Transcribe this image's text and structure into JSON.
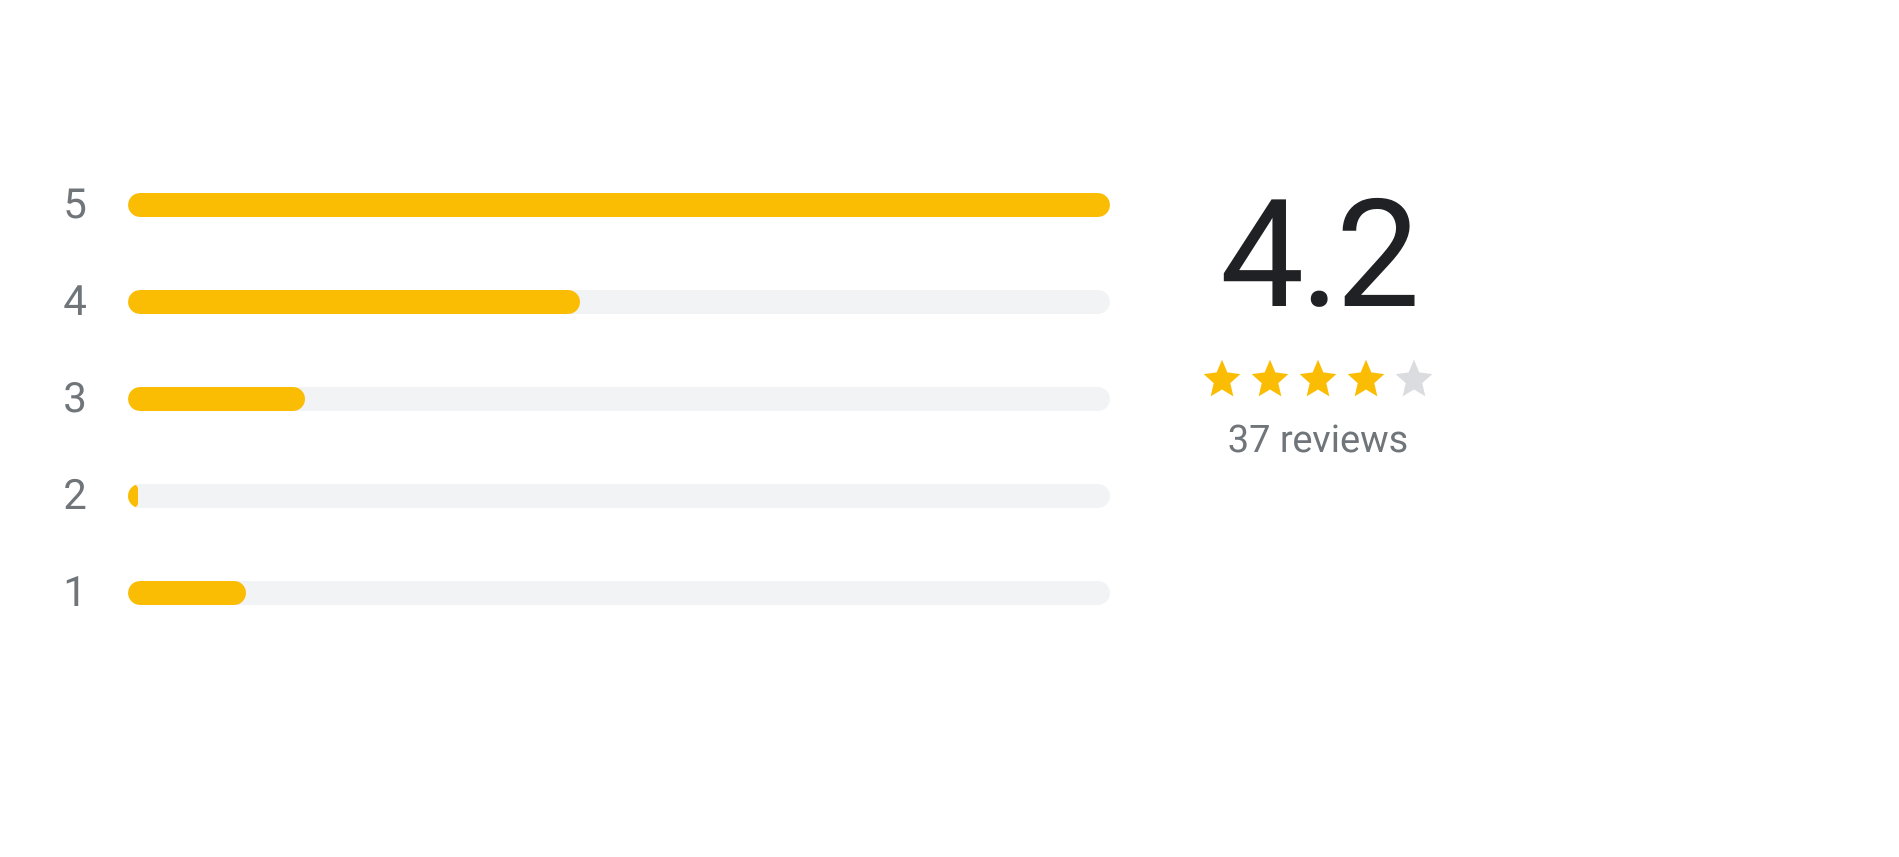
{
  "ratings": {
    "score": "4.2",
    "reviews_text": "37 reviews",
    "star_fill_color": "#fbbc04",
    "star_empty_color": "#dadce0",
    "bar_fill_color": "#fbbc04",
    "bar_track_color": "#f1f3f4",
    "label_color": "#70757a",
    "score_color": "#202124",
    "stars_filled": 4,
    "stars_total": 5,
    "bars": [
      {
        "label": "5",
        "percent": 100
      },
      {
        "label": "4",
        "percent": 46
      },
      {
        "label": "3",
        "percent": 18
      },
      {
        "label": "2",
        "percent": 1
      },
      {
        "label": "1",
        "percent": 12
      }
    ]
  }
}
